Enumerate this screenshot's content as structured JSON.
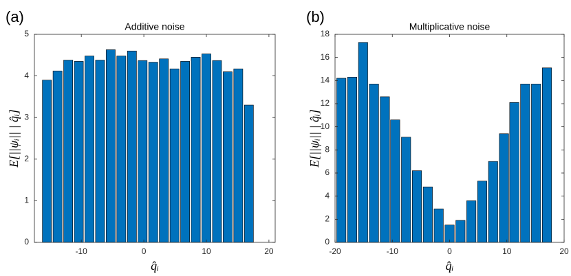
{
  "chart_data": [
    {
      "type": "bar",
      "panel": "(a)",
      "title": "Additive noise",
      "xlabel": "q̂ᵢ",
      "ylabel": "E[||ψᵢ|| | q̂ᵢ]",
      "x": [
        -15.5,
        -13.8,
        -12.1,
        -10.4,
        -8.7,
        -7,
        -5.3,
        -3.6,
        -1.9,
        -0.2,
        1.5,
        3.2,
        4.9,
        6.6,
        8.3,
        10,
        11.7,
        13.4,
        15.1,
        16.8
      ],
      "values": [
        3.9,
        4.12,
        4.38,
        4.35,
        4.48,
        4.38,
        4.63,
        4.48,
        4.6,
        4.37,
        4.33,
        4.41,
        4.17,
        4.35,
        4.45,
        4.53,
        4.37,
        4.1,
        4.17,
        3.3
      ],
      "color": "#0072bd",
      "xlim": [
        -17.5,
        21
      ],
      "xticks": [
        -10,
        0,
        10,
        20
      ],
      "ylim": [
        0,
        5
      ],
      "yticks": [
        0,
        1,
        2,
        3,
        4,
        5
      ]
    },
    {
      "type": "bar",
      "panel": "(b)",
      "title": "Multiplicative noise",
      "xlabel": "q̂ᵢ",
      "ylabel": "E[||ψᵢ|| | q̂ᵢ]",
      "x": [
        -18.9,
        -17,
        -15.1,
        -13.2,
        -11.3,
        -9.5,
        -7.6,
        -5.7,
        -3.8,
        -1.9,
        0,
        1.9,
        3.8,
        5.7,
        7.6,
        9.5,
        11.3,
        13.2,
        15.1,
        17
      ],
      "values": [
        14.2,
        14.3,
        17.3,
        13.7,
        12.6,
        10.6,
        9.1,
        6.2,
        4.8,
        2.9,
        1.5,
        1.9,
        3.6,
        5.3,
        7.0,
        9.4,
        12.1,
        13.7,
        13.7,
        15.1
      ],
      "color": "#0072bd",
      "xlim": [
        -20,
        20
      ],
      "xticks": [
        -20,
        -10,
        0,
        10,
        20
      ],
      "ylim": [
        0,
        18
      ],
      "yticks": [
        0,
        2,
        4,
        6,
        8,
        10,
        12,
        14,
        16,
        18
      ]
    }
  ]
}
